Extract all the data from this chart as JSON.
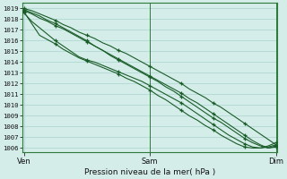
{
  "title": "Pression niveau de la mer( hPa )",
  "background_color": "#d4ede9",
  "grid_color": "#a8d4ce",
  "line_color": "#1a5c28",
  "ytick_labels": [
    "1006",
    "1007",
    "1008",
    "1009",
    "1010",
    "1011",
    "1012",
    "1013",
    "1014",
    "1015",
    "1016",
    "1017",
    "1018",
    "1019"
  ],
  "ytick_vals": [
    1006,
    1007,
    1008,
    1009,
    1010,
    1011,
    1012,
    1013,
    1014,
    1015,
    1016,
    1017,
    1018,
    1019
  ],
  "ylim": [
    1005.6,
    1019.5
  ],
  "xtick_labels": [
    "Ven",
    "Sam",
    "Dim"
  ],
  "xtick_positions": [
    0.0,
    0.5,
    1.0
  ],
  "xlim": [
    -0.005,
    1.005
  ],
  "series": [
    [
      1019.0,
      1018.8,
      1018.5,
      1018.2,
      1017.9,
      1017.5,
      1017.2,
      1016.8,
      1016.5,
      1016.2,
      1015.8,
      1015.5,
      1015.1,
      1014.8,
      1014.4,
      1014.0,
      1013.6,
      1013.2,
      1012.8,
      1012.4,
      1012.0,
      1011.5,
      1011.1,
      1010.7,
      1010.2,
      1009.8,
      1009.3,
      1008.8,
      1008.3,
      1007.8,
      1007.3,
      1006.8,
      1006.3
    ],
    [
      1018.8,
      1018.5,
      1018.1,
      1017.8,
      1017.4,
      1017.1,
      1016.7,
      1016.3,
      1015.9,
      1015.5,
      1015.1,
      1014.7,
      1014.3,
      1013.9,
      1013.5,
      1013.1,
      1012.7,
      1012.3,
      1011.9,
      1011.5,
      1011.1,
      1010.6,
      1010.2,
      1009.7,
      1009.2,
      1008.7,
      1008.2,
      1007.7,
      1007.2,
      1006.7,
      1006.3,
      1006.0,
      1006.1
    ],
    [
      1018.6,
      1017.8,
      1017.2,
      1016.6,
      1016.0,
      1015.5,
      1015.0,
      1014.5,
      1014.2,
      1014.0,
      1013.7,
      1013.4,
      1013.1,
      1012.8,
      1012.5,
      1012.2,
      1011.8,
      1011.4,
      1011.0,
      1010.6,
      1010.2,
      1009.7,
      1009.2,
      1008.7,
      1008.2,
      1007.7,
      1007.2,
      1006.8,
      1006.4,
      1006.1,
      1006.0,
      1006.1,
      1006.3
    ],
    [
      1018.9,
      1018.6,
      1018.3,
      1017.9,
      1017.6,
      1017.2,
      1016.8,
      1016.4,
      1016.0,
      1015.5,
      1015.1,
      1014.6,
      1014.2,
      1013.8,
      1013.4,
      1013.0,
      1012.6,
      1012.2,
      1011.7,
      1011.3,
      1010.8,
      1010.3,
      1009.8,
      1009.3,
      1008.8,
      1008.4,
      1007.9,
      1007.4,
      1006.9,
      1006.5,
      1006.2,
      1006.0,
      1006.2
    ],
    [
      1018.7,
      1017.6,
      1016.5,
      1016.1,
      1015.7,
      1015.2,
      1014.8,
      1014.4,
      1014.1,
      1013.8,
      1013.5,
      1013.2,
      1012.9,
      1012.5,
      1012.2,
      1011.8,
      1011.4,
      1010.9,
      1010.5,
      1010.0,
      1009.5,
      1009.0,
      1008.6,
      1008.1,
      1007.7,
      1007.2,
      1006.8,
      1006.4,
      1006.1,
      1006.0,
      1006.0,
      1006.2,
      1006.5
    ]
  ],
  "n_points": 33,
  "marker_size": 3.5,
  "linewidth": 0.8,
  "xlabel_fontsize": 6.5,
  "ytick_fontsize": 5.2,
  "xtick_fontsize": 6.0
}
